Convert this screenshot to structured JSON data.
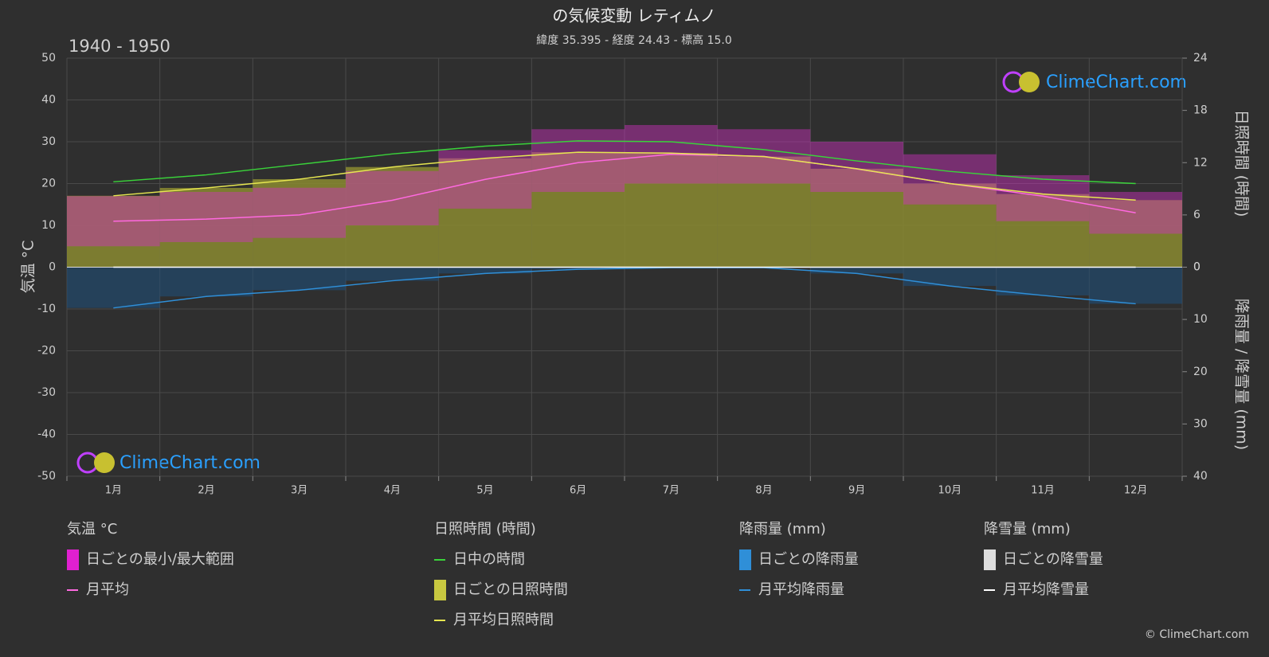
{
  "chart_data": {
    "type": "climate",
    "title": "の気候変動 レティムノ",
    "subtitle": "緯度 35.395 - 経度 24.43 - 標高 15.0",
    "period": "1940 - 1950",
    "ylabel": "気温 °C",
    "y2label": "日照時間 (時間)",
    "y3label": "降雨量 / 降雪量 (mm)",
    "watermark": "ClimeChart.com",
    "copyright": "© ClimeChart.com",
    "categories": [
      "1月",
      "2月",
      "3月",
      "4月",
      "5月",
      "6月",
      "7月",
      "8月",
      "9月",
      "10月",
      "11月",
      "12月"
    ],
    "ylim": [
      -50,
      50
    ],
    "yticks": [
      -50,
      -40,
      -30,
      -20,
      -10,
      0,
      10,
      20,
      30,
      40,
      50
    ],
    "y2lim": [
      0,
      24
    ],
    "y2ticks": [
      0,
      6,
      12,
      18,
      24
    ],
    "y3lim": [
      0,
      40
    ],
    "y3ticks": [
      0,
      10,
      20,
      30,
      40
    ],
    "grid": true,
    "temp_range": {
      "color": "#d030c0",
      "low": [
        5,
        6,
        7,
        10,
        14,
        18,
        20,
        20,
        18,
        15,
        11,
        8
      ],
      "high": [
        17,
        18,
        19,
        23,
        28,
        33,
        34,
        33,
        30,
        27,
        22,
        18
      ]
    },
    "series": [
      {
        "key": "temp",
        "color": "#ff69e0",
        "axis": "y",
        "values": [
          11,
          11.5,
          12.5,
          16,
          21,
          25,
          27,
          26.5,
          23.5,
          20,
          17,
          13
        ]
      },
      {
        "key": "daylight",
        "color": "#3ad33a",
        "axis": "y2",
        "values": [
          9.8,
          10.6,
          11.8,
          13.0,
          13.9,
          14.5,
          14.4,
          13.5,
          12.2,
          11.0,
          10.1,
          9.6
        ]
      },
      {
        "key": "sunshine",
        "color": "#e6e650",
        "fill": "#8a8a30",
        "axis": "y2",
        "values": [
          8.2,
          9.1,
          10.1,
          11.5,
          12.5,
          13.2,
          13.1,
          12.7,
          11.3,
          9.6,
          8.4,
          7.7
        ]
      },
      {
        "key": "rain",
        "color": "#2f8fd8",
        "fill": "#1f4f78",
        "axis": "y3",
        "values": [
          7.8,
          5.6,
          4.4,
          2.6,
          1.2,
          0.4,
          0.1,
          0.1,
          1.2,
          3.6,
          5.4,
          7.0
        ]
      },
      {
        "key": "snow",
        "color": "#ffffff",
        "axis": "y3",
        "values": [
          0,
          0,
          0,
          0,
          0,
          0,
          0,
          0,
          0,
          0,
          0,
          0
        ]
      }
    ],
    "legend": [
      {
        "title": "気温 °C",
        "items": [
          {
            "label": "日ごとの最小/最大範囲",
            "swatch": "box",
            "color": "#e020d0"
          },
          {
            "label": "月平均",
            "swatch": "line",
            "color": "#ff69e0"
          }
        ]
      },
      {
        "title": "日照時間 (時間)",
        "items": [
          {
            "label": "日中の時間",
            "swatch": "line",
            "color": "#3ad33a"
          },
          {
            "label": "日ごとの日照時間",
            "swatch": "box",
            "color": "#c8c840"
          },
          {
            "label": "月平均日照時間",
            "swatch": "line",
            "color": "#e6e650"
          }
        ]
      },
      {
        "title": "降雨量 (mm)",
        "items": [
          {
            "label": "日ごとの降雨量",
            "swatch": "box",
            "color": "#2f8fd8"
          },
          {
            "label": "月平均降雨量",
            "swatch": "line",
            "color": "#2f8fd8"
          }
        ]
      },
      {
        "title": "降雪量 (mm)",
        "items": [
          {
            "label": "日ごとの降雪量",
            "swatch": "box",
            "color": "#dddddd"
          },
          {
            "label": "月平均降雪量",
            "swatch": "line",
            "color": "#ffffff"
          }
        ]
      }
    ]
  }
}
